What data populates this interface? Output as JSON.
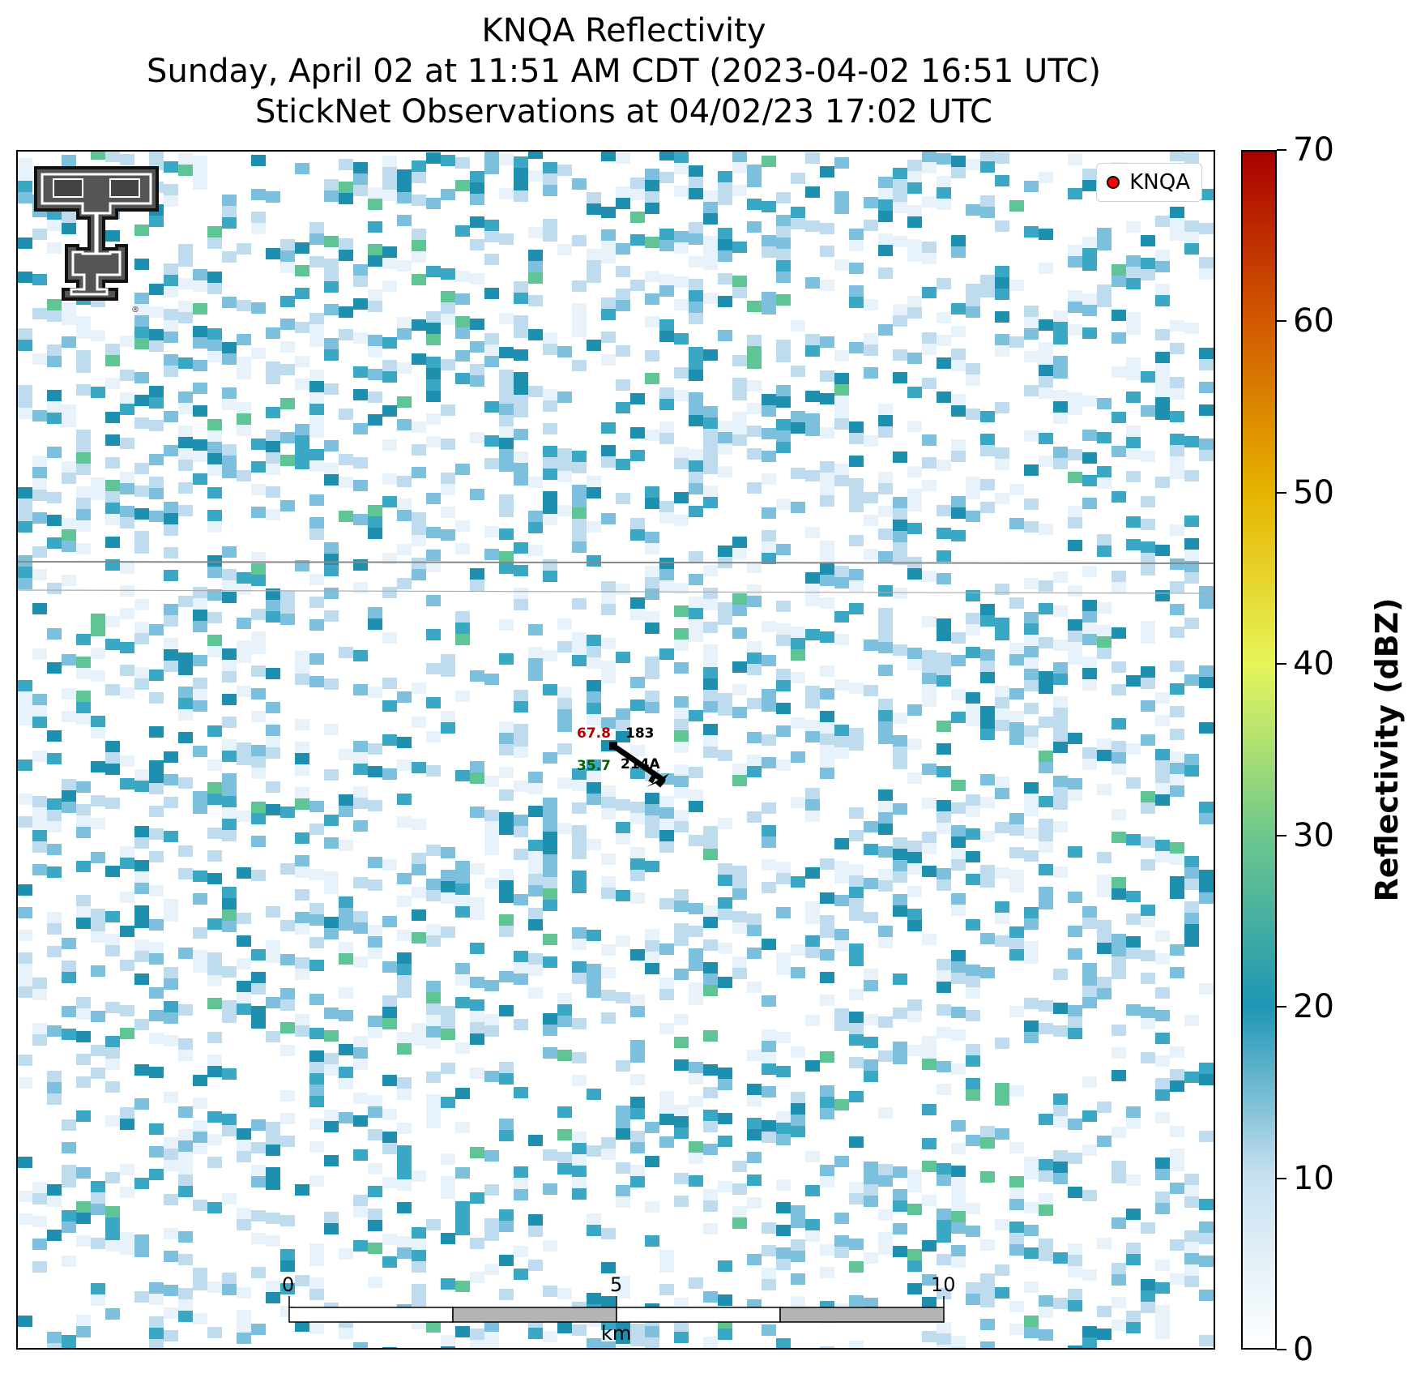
{
  "title": {
    "line1": "KNQA Reflectivity",
    "line2": "Sunday, April 02 at 11:51 AM CDT (2023-04-02 16:51 UTC)",
    "line3": "StickNet Observations at 04/02/23 17:02 UTC"
  },
  "legend": {
    "label": "KNQA",
    "marker_color": "#ff0000"
  },
  "station": {
    "id": "214A",
    "temperature": "67.8",
    "dewpoint": "35.7",
    "pressure": "183",
    "temperature_color": "#b00000",
    "dewpoint_color": "#006400"
  },
  "scale_bar": {
    "labels": [
      "0",
      "5",
      "10"
    ],
    "unit": "km"
  },
  "colorbar": {
    "label": "Reflectivity (dBZ)",
    "min": 0,
    "max": 70,
    "ticks": [
      "0",
      "10",
      "20",
      "30",
      "40",
      "50",
      "60",
      "70"
    ],
    "colors": [
      "#ffffff",
      "#c8e1f0",
      "#1e96b4",
      "#6ec88c",
      "#e6f55a",
      "#e6b400",
      "#d25a00",
      "#aa0000"
    ]
  },
  "logo": {
    "icon": "texas-tech-double-t-logo"
  },
  "reflectivity_palette": {
    "very_light": "#e8f2fa",
    "light": "#bfdcee",
    "medium": "#7cc0de",
    "teal": "#3aa8c4",
    "dark_teal": "#1e8fae",
    "green": "#5fc595"
  }
}
